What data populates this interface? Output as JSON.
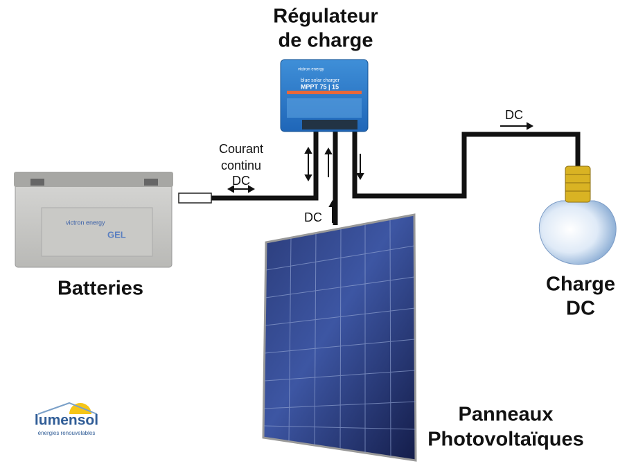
{
  "labels": {
    "regulator": [
      "Régulateur",
      "de charge"
    ],
    "current": [
      "Courant",
      "continu",
      "DC"
    ],
    "panel_dc": "DC",
    "load_dc": "DC",
    "batteries": "Batteries",
    "load": [
      "Charge",
      "DC"
    ],
    "panels": [
      "Panneaux",
      "Photovoltaïques"
    ]
  },
  "controller": {
    "brand": "victron energy",
    "product": "blue solar charger",
    "model": "MPPT 75 | 15"
  },
  "battery": {
    "brand": "victron energy",
    "type": "GEL"
  },
  "logo": {
    "name": "lumensol",
    "tagline": "énergies renouvelables"
  }
}
